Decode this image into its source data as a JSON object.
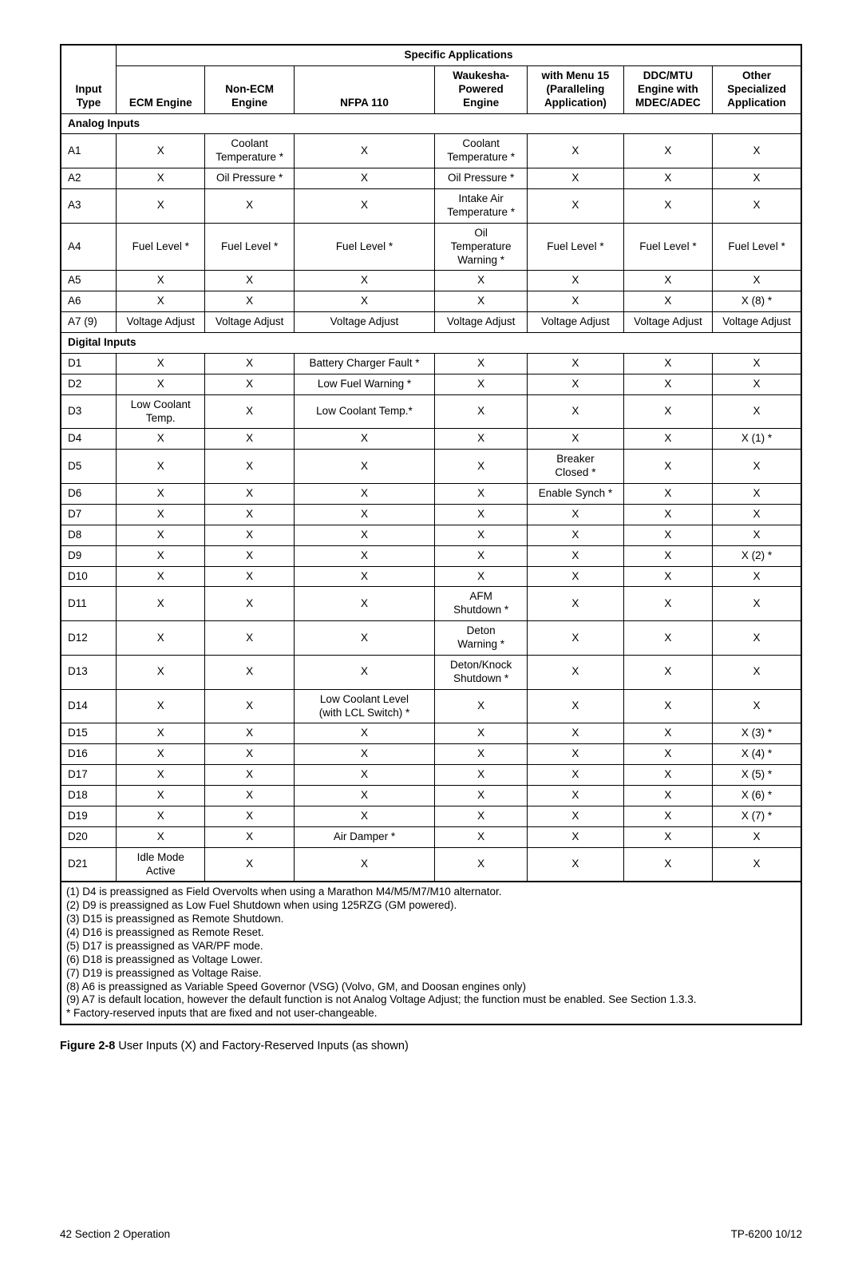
{
  "headers": {
    "specific_applications": "Specific Applications",
    "input_type": "Input\nType",
    "cols": [
      "ECM Engine",
      "Non-ECM\nEngine",
      "NFPA 110",
      "Waukesha-\nPowered\nEngine",
      "with Menu 15\n(Paralleling\nApplication)",
      "DDC/MTU\nEngine with\nMDEC/ADEC",
      "Other\nSpecialized\nApplication"
    ]
  },
  "sections": [
    {
      "title": "Analog Inputs",
      "rows": [
        {
          "id": "A1",
          "cells": [
            "X",
            "Coolant\nTemperature *",
            "X",
            "Coolant\nTemperature *",
            "X",
            "X",
            "X"
          ]
        },
        {
          "id": "A2",
          "cells": [
            "X",
            "Oil Pressure *",
            "X",
            "Oil Pressure *",
            "X",
            "X",
            "X"
          ]
        },
        {
          "id": "A3",
          "cells": [
            "X",
            "X",
            "X",
            "Intake Air\nTemperature *",
            "X",
            "X",
            "X"
          ]
        },
        {
          "id": "A4",
          "cells": [
            "Fuel Level *",
            "Fuel Level *",
            "Fuel Level *",
            "Oil\nTemperature\nWarning *",
            "Fuel Level *",
            "Fuel Level *",
            "Fuel Level *"
          ]
        },
        {
          "id": "A5",
          "cells": [
            "X",
            "X",
            "X",
            "X",
            "X",
            "X",
            "X"
          ]
        },
        {
          "id": "A6",
          "cells": [
            "X",
            "X",
            "X",
            "X",
            "X",
            "X",
            "X (8) *"
          ]
        },
        {
          "id": "A7 (9)",
          "cells": [
            "Voltage Adjust",
            "Voltage Adjust",
            "Voltage Adjust",
            "Voltage Adjust",
            "Voltage Adjust",
            "Voltage Adjust",
            "Voltage Adjust"
          ]
        }
      ]
    },
    {
      "title": "Digital Inputs",
      "rows": [
        {
          "id": "D1",
          "cells": [
            "X",
            "X",
            "Battery Charger Fault *",
            "X",
            "X",
            "X",
            "X"
          ]
        },
        {
          "id": "D2",
          "cells": [
            "X",
            "X",
            "Low Fuel Warning *",
            "X",
            "X",
            "X",
            "X"
          ]
        },
        {
          "id": "D3",
          "cells": [
            "Low Coolant\nTemp.",
            "X",
            "Low Coolant Temp.*",
            "X",
            "X",
            "X",
            "X"
          ]
        },
        {
          "id": "D4",
          "cells": [
            "X",
            "X",
            "X",
            "X",
            "X",
            "X",
            "X (1) *"
          ]
        },
        {
          "id": "D5",
          "cells": [
            "X",
            "X",
            "X",
            "X",
            "Breaker\nClosed *",
            "X",
            "X"
          ]
        },
        {
          "id": "D6",
          "cells": [
            "X",
            "X",
            "X",
            "X",
            "Enable Synch *",
            "X",
            "X"
          ]
        },
        {
          "id": "D7",
          "cells": [
            "X",
            "X",
            "X",
            "X",
            "X",
            "X",
            "X"
          ]
        },
        {
          "id": "D8",
          "cells": [
            "X",
            "X",
            "X",
            "X",
            "X",
            "X",
            "X"
          ]
        },
        {
          "id": "D9",
          "cells": [
            "X",
            "X",
            "X",
            "X",
            "X",
            "X",
            "X (2) *"
          ]
        },
        {
          "id": "D10",
          "cells": [
            "X",
            "X",
            "X",
            "X",
            "X",
            "X",
            "X"
          ]
        },
        {
          "id": "D11",
          "cells": [
            "X",
            "X",
            "X",
            "AFM\nShutdown *",
            "X",
            "X",
            "X"
          ]
        },
        {
          "id": "D12",
          "cells": [
            "X",
            "X",
            "X",
            "Deton\nWarning *",
            "X",
            "X",
            "X"
          ]
        },
        {
          "id": "D13",
          "cells": [
            "X",
            "X",
            "X",
            "Deton/Knock\nShutdown *",
            "X",
            "X",
            "X"
          ]
        },
        {
          "id": "D14",
          "cells": [
            "X",
            "X",
            "Low Coolant Level\n(with LCL Switch) *",
            "X",
            "X",
            "X",
            "X"
          ]
        },
        {
          "id": "D15",
          "cells": [
            "X",
            "X",
            "X",
            "X",
            "X",
            "X",
            "X (3) *"
          ]
        },
        {
          "id": "D16",
          "cells": [
            "X",
            "X",
            "X",
            "X",
            "X",
            "X",
            "X (4) *"
          ]
        },
        {
          "id": "D17",
          "cells": [
            "X",
            "X",
            "X",
            "X",
            "X",
            "X",
            "X (5) *"
          ]
        },
        {
          "id": "D18",
          "cells": [
            "X",
            "X",
            "X",
            "X",
            "X",
            "X",
            "X (6) *"
          ]
        },
        {
          "id": "D19",
          "cells": [
            "X",
            "X",
            "X",
            "X",
            "X",
            "X",
            "X (7) *"
          ]
        },
        {
          "id": "D20",
          "cells": [
            "X",
            "X",
            "Air Damper *",
            "X",
            "X",
            "X",
            "X"
          ]
        },
        {
          "id": "D21",
          "cells": [
            "Idle Mode\nActive",
            "X",
            "X",
            "X",
            "X",
            "X",
            "X"
          ]
        }
      ]
    }
  ],
  "footnotes": [
    "(1) D4 is preassigned as Field Overvolts when using a Marathon M4/M5/M7/M10 alternator.",
    "(2) D9 is preassigned as Low Fuel Shutdown when using 125RZG (GM powered).",
    "(3) D15 is preassigned as Remote Shutdown.",
    "(4) D16 is preassigned as Remote Reset.",
    "(5) D17 is preassigned as VAR/PF mode.",
    "(6) D18 is preassigned as Voltage Lower.",
    "(7) D19 is preassigned as Voltage Raise.",
    "(8) A6 is preassigned as Variable Speed Governor (VSG) (Volvo, GM, and Doosan engines only)",
    "(9) A7 is default location, however the default function is not Analog Voltage Adjust; the function must be enabled.  See Section 1.3.3.",
    "*   Factory-reserved inputs that are fixed and not user-changeable."
  ],
  "caption": {
    "fig": "Figure 2-8",
    "text": "   User Inputs (X) and Factory-Reserved Inputs (as shown)"
  },
  "footer": {
    "left": "42   Section 2  Operation",
    "right": "TP-6200  10/12"
  },
  "col_widths": [
    "7.5%",
    "12%",
    "12%",
    "19%",
    "12.5%",
    "13%",
    "12%",
    "12%"
  ]
}
